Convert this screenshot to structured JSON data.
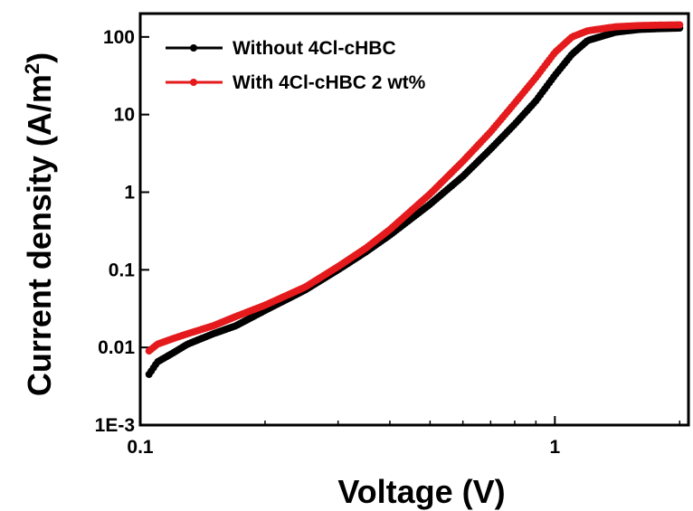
{
  "chart_data": {
    "type": "scatter",
    "xlabel": "Voltage (V)",
    "ylabel_main": "Current density (A/m",
    "ylabel_sup": "2",
    "ylabel_close": ")",
    "x_scale": "log",
    "y_scale": "log",
    "xlim": [
      0.1,
      2.1
    ],
    "ylim": [
      0.001,
      200
    ],
    "x_ticks": [
      {
        "value": 0.1,
        "label": "0.1"
      },
      {
        "value": 1,
        "label": "1"
      }
    ],
    "y_ticks": [
      {
        "value": 0.001,
        "label": "1E-3"
      },
      {
        "value": 0.01,
        "label": "0.01"
      },
      {
        "value": 0.1,
        "label": "0.1"
      },
      {
        "value": 1,
        "label": "1"
      },
      {
        "value": 10,
        "label": "10"
      },
      {
        "value": 100,
        "label": "100"
      }
    ],
    "grid": false,
    "legend_position": "top-left",
    "series": [
      {
        "name": "Without 4Cl-cHBC",
        "color": "#000000",
        "x": [
          0.105,
          0.11,
          0.12,
          0.13,
          0.15,
          0.17,
          0.2,
          0.25,
          0.3,
          0.35,
          0.4,
          0.5,
          0.6,
          0.7,
          0.8,
          0.9,
          1.0,
          1.1,
          1.2,
          1.4,
          1.6,
          1.8,
          2.0
        ],
        "y": [
          0.0045,
          0.0065,
          0.0085,
          0.011,
          0.015,
          0.019,
          0.03,
          0.055,
          0.1,
          0.17,
          0.28,
          0.7,
          1.6,
          3.6,
          7.5,
          15,
          32,
          60,
          90,
          115,
          125,
          128,
          130
        ]
      },
      {
        "name": "With 4Cl-cHBC 2 wt%",
        "color": "#e41a1c",
        "x": [
          0.105,
          0.11,
          0.12,
          0.13,
          0.15,
          0.17,
          0.2,
          0.25,
          0.3,
          0.35,
          0.4,
          0.5,
          0.6,
          0.7,
          0.8,
          0.9,
          1.0,
          1.1,
          1.2,
          1.4,
          1.6,
          1.8,
          2.0
        ],
        "y": [
          0.009,
          0.011,
          0.013,
          0.015,
          0.019,
          0.025,
          0.035,
          0.06,
          0.11,
          0.19,
          0.33,
          0.95,
          2.5,
          6,
          14,
          30,
          63,
          100,
          120,
          135,
          140,
          142,
          143
        ]
      }
    ]
  }
}
